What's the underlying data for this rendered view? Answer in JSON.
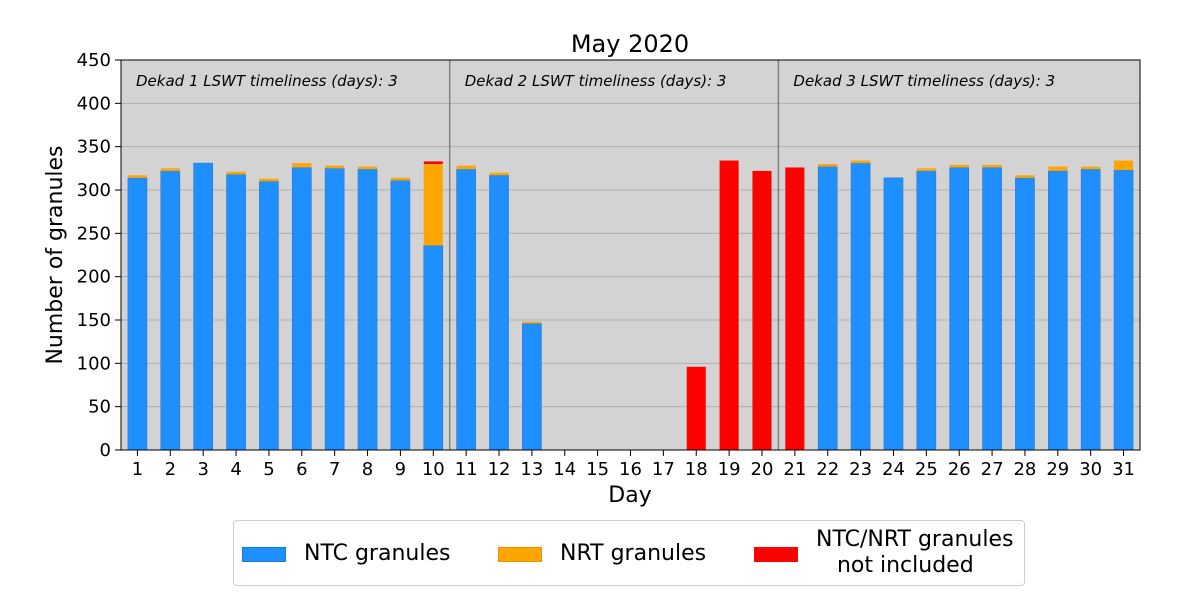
{
  "chart_data": {
    "type": "bar",
    "title": "May 2020",
    "xlabel": "Day",
    "ylabel": "Number of granules",
    "ylim": [
      0,
      450
    ],
    "yticks": [
      0,
      50,
      100,
      150,
      200,
      250,
      300,
      350,
      400,
      450
    ],
    "grid": true,
    "stacked": true,
    "categories": [
      "1",
      "2",
      "3",
      "4",
      "5",
      "6",
      "7",
      "8",
      "9",
      "10",
      "11",
      "12",
      "13",
      "14",
      "15",
      "16",
      "17",
      "18",
      "19",
      "20",
      "21",
      "22",
      "23",
      "24",
      "25",
      "26",
      "27",
      "28",
      "29",
      "30",
      "31"
    ],
    "series": [
      {
        "name": "NTC granules",
        "color": "#1f8fff",
        "values": [
          314,
          322,
          331,
          318,
          310,
          326,
          325,
          324,
          311,
          236,
          324,
          317,
          146,
          0,
          0,
          0,
          0,
          0,
          0,
          0,
          0,
          327,
          331,
          314,
          322,
          326,
          326,
          314,
          322,
          324,
          323
        ]
      },
      {
        "name": "NRT granules",
        "color": "#ffa500",
        "values": [
          3,
          3,
          0,
          3,
          3,
          5,
          3,
          3,
          3,
          94,
          4,
          3,
          2,
          0,
          0,
          0,
          0,
          0,
          0,
          0,
          0,
          3,
          3,
          0,
          3,
          3,
          3,
          3,
          5,
          3,
          11
        ]
      },
      {
        "name": "NTC/NRT granules\n   not included",
        "color": "#ff0000",
        "values": [
          0,
          0,
          0,
          0,
          0,
          0,
          0,
          0,
          0,
          3,
          0,
          0,
          0,
          0,
          0,
          0,
          0,
          96,
          334,
          322,
          326,
          0,
          0,
          0,
          0,
          0,
          0,
          0,
          0,
          0,
          0
        ]
      }
    ],
    "dekad_separators_after": [
      "10",
      "20"
    ],
    "annotations": [
      "Dekad 1 LSWT timeliness (days): 3",
      "Dekad 2 LSWT timeliness (days): 3",
      "Dekad 3 LSWT timeliness (days): 3"
    ],
    "legend_position": "bottom-center",
    "background_color": "#d3d3d3"
  }
}
